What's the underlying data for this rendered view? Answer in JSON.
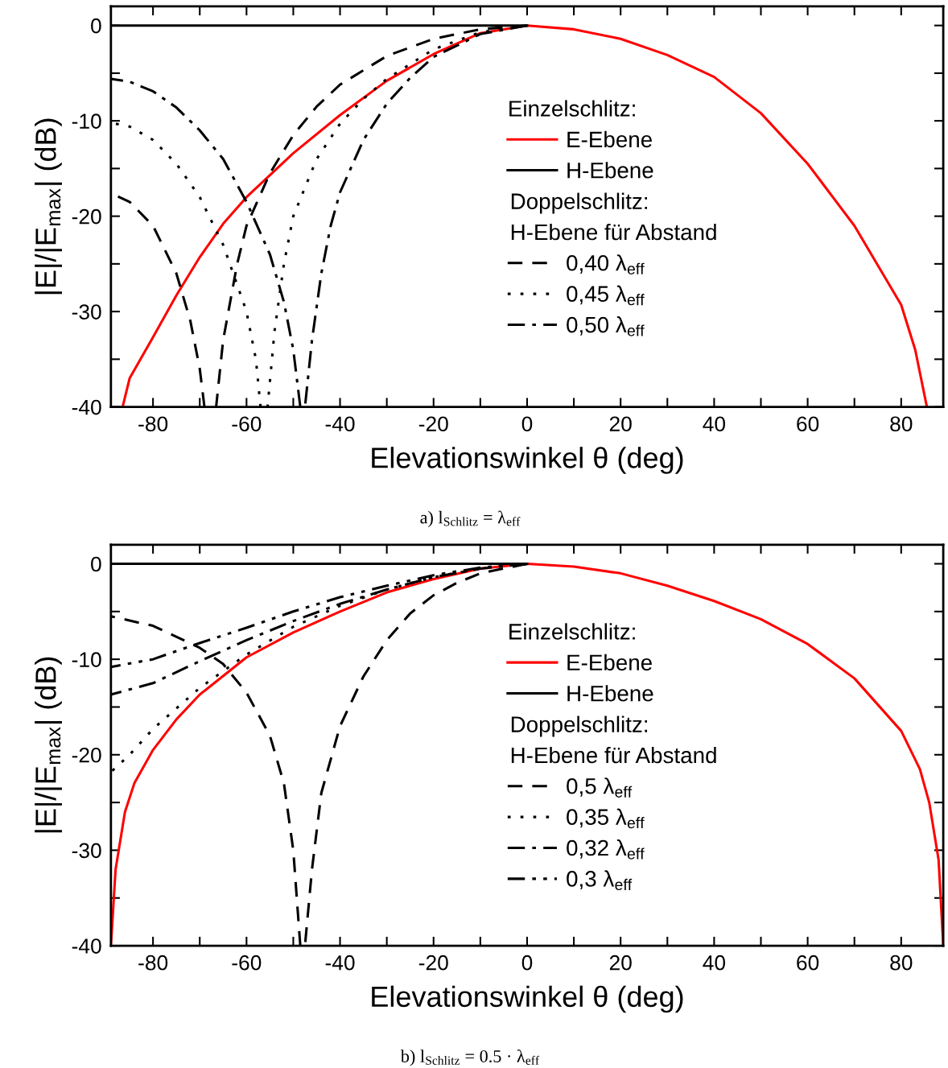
{
  "chart_data": [
    {
      "type": "line",
      "xlabel": "Elevationswinkel θ (deg)",
      "ylabel": "|E|/|E$_{max}$| (dB)",
      "legend_title": "Einzelschlitz:",
      "legend": "right",
      "xlim": [
        -89,
        89
      ],
      "xticks": [
        -80,
        {
          "value": -70,
          "label": null
        },
        -60,
        {
          "value": -50,
          "label": null
        },
        -40,
        {
          "value": -30,
          "label": null
        },
        -20,
        {
          "value": -10,
          "label": null
        },
        0,
        {
          "value": 10,
          "label": null
        },
        20,
        {
          "value": 30,
          "label": null
        },
        40,
        {
          "value": 50,
          "label": null
        },
        60,
        {
          "value": 70,
          "label": null
        },
        80
      ],
      "ylim": [
        -40,
        2
      ],
      "yticks": [
        -40,
        {
          "value": -35,
          "label": null
        },
        -30,
        {
          "value": -25,
          "label": null
        },
        -20,
        {
          "value": -15,
          "label": null
        },
        -10,
        {
          "value": -5,
          "label": null
        },
        0
      ],
      "annotations": [
        "Doppelschlitz:",
        "H-Ebene für Abstand",
        "a) l$_{Schlitz}$ = λ$_{eff}$"
      ],
      "series": [
        {
          "name": "E-Ebene",
          "color": "#ff0000",
          "line_style": "solid",
          "x": [
            -86.5,
            -85,
            -80,
            -75,
            -70,
            -65,
            -60,
            -50,
            -40,
            -30,
            -20,
            -10,
            0,
            10,
            20,
            30,
            40,
            50,
            60,
            70,
            80,
            83,
            85.5
          ],
          "values": [
            -40,
            -37,
            -32.7,
            -28.3,
            -24.3,
            -20.8,
            -18,
            -13.4,
            -9.4,
            -5.8,
            -3,
            -0.8,
            0,
            -0.4,
            -1.4,
            -3.1,
            -5.4,
            -9.2,
            -14.5,
            -21,
            -29.3,
            -34,
            -40
          ]
        },
        {
          "name": "H-Ebene",
          "color": "#000000",
          "line_style": "solid",
          "x": [
            -89,
            0
          ],
          "values": [
            0,
            0
          ]
        },
        {
          "name": "0,40 λ$_{eff}$",
          "color": "#000000",
          "line_style": "dashed",
          "x": [
            -89,
            -85,
            -80,
            -75,
            -72,
            -70,
            -69,
            -68,
            -66.5,
            -65,
            -62,
            -60,
            -55,
            -50,
            -45,
            -40,
            -30,
            -20,
            -10,
            0
          ],
          "values": [
            -17.6,
            -18.5,
            -21,
            -26,
            -31,
            -36,
            -40,
            null,
            -40,
            -33,
            -25,
            -21,
            -15.5,
            -11.5,
            -8.5,
            -6.2,
            -3.2,
            -1.4,
            -0.4,
            0
          ]
        },
        {
          "name": "0,45 λ$_{eff}$",
          "color": "#000000",
          "line_style": "dotted",
          "x": [
            -89,
            -85,
            -80,
            -75,
            -70,
            -65,
            -60,
            -58,
            -57,
            -56,
            -55.5,
            -54,
            -52,
            -50,
            -45,
            -40,
            -35,
            -30,
            -20,
            -10,
            0
          ],
          "values": [
            -10.2,
            -10.6,
            -12,
            -14.5,
            -18,
            -23,
            -30,
            -35,
            -40,
            null,
            -40,
            -32,
            -25,
            -20,
            -14,
            -10.3,
            -7.7,
            -5.6,
            -2.5,
            -0.7,
            0
          ]
        },
        {
          "name": "0,50 λ$_{eff}$",
          "color": "#000000",
          "line_style": "dashdot",
          "x": [
            -89,
            -85,
            -80,
            -75,
            -70,
            -65,
            -60,
            -55,
            -52,
            -50,
            -48.5,
            -48,
            -47.5,
            -46,
            -44,
            -42,
            -40,
            -35,
            -30,
            -25,
            -20,
            -10,
            0
          ],
          "values": [
            -5.6,
            -5.9,
            -6.9,
            -8.6,
            -11,
            -14,
            -18.5,
            -24,
            -29,
            -34,
            -40,
            null,
            -40,
            -33,
            -26,
            -21,
            -17.5,
            -12,
            -8.2,
            -5.5,
            -3.3,
            -0.9,
            0
          ]
        }
      ]
    },
    {
      "type": "line",
      "xlabel": "Elevationswinkel θ (deg)",
      "ylabel": "|E|/|E$_{max}$| (dB)",
      "legend_title": "Einzelschlitz:",
      "legend": "right",
      "xlim": [
        -89,
        89
      ],
      "xticks": [
        -80,
        {
          "value": -70,
          "label": null
        },
        -60,
        {
          "value": -50,
          "label": null
        },
        -40,
        {
          "value": -30,
          "label": null
        },
        -20,
        {
          "value": -10,
          "label": null
        },
        0,
        {
          "value": 10,
          "label": null
        },
        20,
        {
          "value": 30,
          "label": null
        },
        40,
        {
          "value": 50,
          "label": null
        },
        60,
        {
          "value": 70,
          "label": null
        },
        80
      ],
      "ylim": [
        -40,
        2
      ],
      "yticks": [
        -40,
        {
          "value": -35,
          "label": null
        },
        -30,
        {
          "value": -25,
          "label": null
        },
        -20,
        {
          "value": -15,
          "label": null
        },
        -10,
        {
          "value": -5,
          "label": null
        },
        0
      ],
      "annotations": [
        "Doppelschlitz:",
        "H-Ebene für Abstand",
        "b) l$_{Schlitz}$ = 0.5 · λ$_{eff}$"
      ],
      "series": [
        {
          "name": "E-Ebene",
          "color": "#ff0000",
          "line_style": "solid",
          "x": [
            -89,
            -88,
            -86,
            -84,
            -80,
            -75,
            -70,
            -60,
            -50,
            -40,
            -30,
            -20,
            -10,
            0,
            10,
            20,
            30,
            40,
            50,
            60,
            70,
            80,
            84,
            86,
            88,
            89
          ],
          "values": [
            -40,
            -32,
            -26,
            -23,
            -19.5,
            -16.3,
            -13.7,
            -9.8,
            -7.2,
            -5,
            -3,
            -1.6,
            -0.5,
            0,
            -0.3,
            -1,
            -2.3,
            -3.9,
            -5.8,
            -8.4,
            -12,
            -17.5,
            -21.5,
            -25,
            -31,
            -40
          ]
        },
        {
          "name": "H-Ebene",
          "color": "#000000",
          "line_style": "solid",
          "x": [
            -89,
            0
          ],
          "values": [
            0,
            0
          ]
        },
        {
          "name": "0,5 λ$_{eff}$",
          "color": "#000000",
          "line_style": "dashed",
          "x": [
            -89,
            -80,
            -70,
            -65,
            -60,
            -55,
            -52,
            -50,
            -48.5,
            -48,
            -47.5,
            -46,
            -44,
            -40,
            -35,
            -30,
            -25,
            -20,
            -15,
            -10,
            0
          ],
          "values": [
            -5.5,
            -6.5,
            -8.8,
            -10.5,
            -13.5,
            -18,
            -23,
            -30,
            -40,
            null,
            -40,
            -32,
            -24,
            -17,
            -11.8,
            -8,
            -5.2,
            -3.3,
            -2,
            -1,
            0
          ]
        },
        {
          "name": "0,35 λ$_{eff}$",
          "color": "#000000",
          "line_style": "dotted",
          "x": [
            -89,
            -85,
            -80,
            -70,
            -60,
            -50,
            -40,
            -30,
            -20,
            -10,
            0
          ],
          "values": [
            -21.8,
            -20,
            -17.3,
            -13,
            -9.5,
            -6.6,
            -4.4,
            -2.7,
            -1.4,
            -0.5,
            0
          ]
        },
        {
          "name": "0,32 λ$_{eff}$",
          "color": "#000000",
          "line_style": "dashdot",
          "x": [
            -89,
            -80,
            -70,
            -60,
            -50,
            -40,
            -30,
            -20,
            -10,
            0
          ],
          "values": [
            -13.7,
            -12.5,
            -10.2,
            -8,
            -6,
            -4.2,
            -2.7,
            -1.4,
            -0.5,
            0
          ]
        },
        {
          "name": "0,3 λ$_{eff}$",
          "color": "#000000",
          "line_style": "dashdotdot",
          "x": [
            -89,
            -80,
            -70,
            -60,
            -50,
            -40,
            -30,
            -20,
            -10,
            0
          ],
          "values": [
            -10.8,
            -10,
            -8.3,
            -6.7,
            -5,
            -3.5,
            -2.3,
            -1.2,
            -0.4,
            0
          ]
        }
      ]
    }
  ]
}
